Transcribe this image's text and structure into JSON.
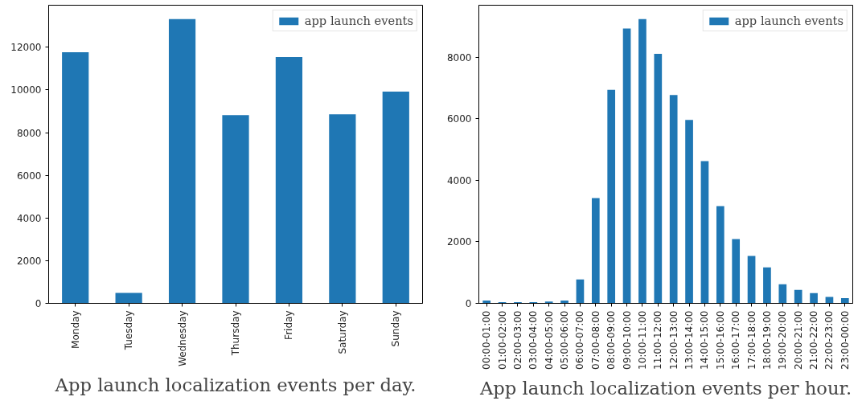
{
  "chart_data": [
    {
      "type": "bar",
      "title": "App launch localization events per day.",
      "categories": [
        "Monday",
        "Tuesday",
        "Wednesday",
        "Thursday",
        "Friday",
        "Saturday",
        "Sunday"
      ],
      "series": [
        {
          "name": "app launch events",
          "color": "#1f77b4",
          "values": [
            11770,
            490,
            13320,
            8820,
            11540,
            8860,
            9920
          ]
        }
      ],
      "ylim": [
        0,
        13970
      ],
      "yticks": [
        0,
        2000,
        4000,
        6000,
        8000,
        10000,
        12000
      ],
      "grid": false,
      "legend": "top right"
    },
    {
      "type": "bar",
      "title": "App launch localization events per hour.",
      "categories": [
        "00:00-01:00",
        "01:00-02:00",
        "02:00-03:00",
        "03:00-04:00",
        "04:00-05:00",
        "05:00-06:00",
        "06:00-07:00",
        "07:00-08:00",
        "08:00-09:00",
        "09:00-10:00",
        "10:00-11:00",
        "11:00-12:00",
        "12:00-13:00",
        "13:00-14:00",
        "14:00-15:00",
        "15:00-16:00",
        "16:00-17:00",
        "17:00-18:00",
        "18:00-19:00",
        "19:00-20:00",
        "20:00-21:00",
        "21:00-22:00",
        "22:00-23:00",
        "23:00-00:00"
      ],
      "series": [
        {
          "name": "app launch events",
          "color": "#1f77b4",
          "values": [
            90,
            40,
            40,
            40,
            60,
            90,
            780,
            3420,
            6940,
            8930,
            9240,
            8110,
            6770,
            5960,
            4620,
            3160,
            2090,
            1540,
            1170,
            620,
            440,
            330,
            210,
            170
          ]
        }
      ],
      "ylim": [
        0,
        9690
      ],
      "yticks": [
        0,
        2000,
        4000,
        6000,
        8000
      ],
      "grid": false,
      "legend": "top right"
    }
  ]
}
